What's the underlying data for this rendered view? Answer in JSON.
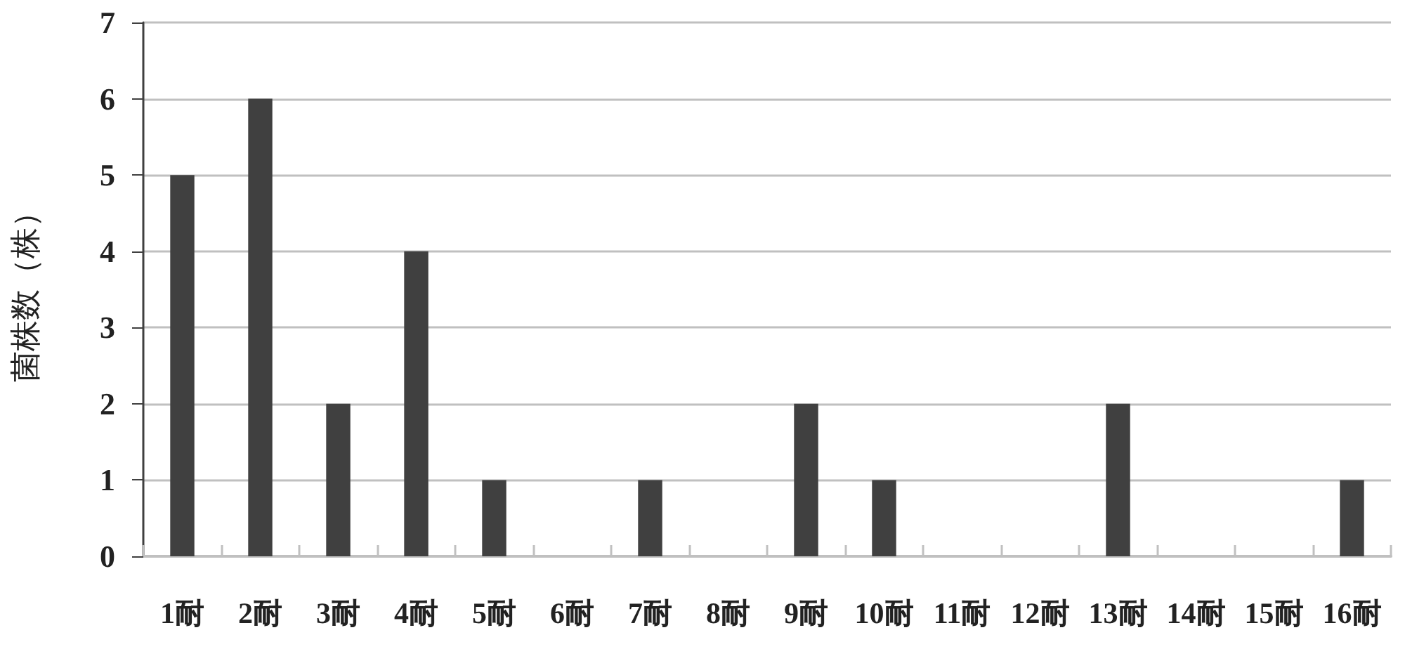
{
  "chart_data": {
    "type": "bar",
    "ylabel": "菌株数（株）",
    "categories": [
      "1耐",
      "2耐",
      "3耐",
      "4耐",
      "5耐",
      "6耐",
      "7耐",
      "8耐",
      "9耐",
      "10耐",
      "11耐",
      "12耐",
      "13耐",
      "14耐",
      "15耐",
      "16耐"
    ],
    "values": [
      5,
      6,
      2,
      4,
      1,
      0,
      1,
      0,
      2,
      1,
      0,
      0,
      2,
      0,
      0,
      1
    ],
    "color": "#404040",
    "ylim": [
      0,
      7
    ],
    "yticks": [
      0,
      1,
      2,
      3,
      4,
      5,
      6,
      7
    ],
    "grid": "y"
  }
}
